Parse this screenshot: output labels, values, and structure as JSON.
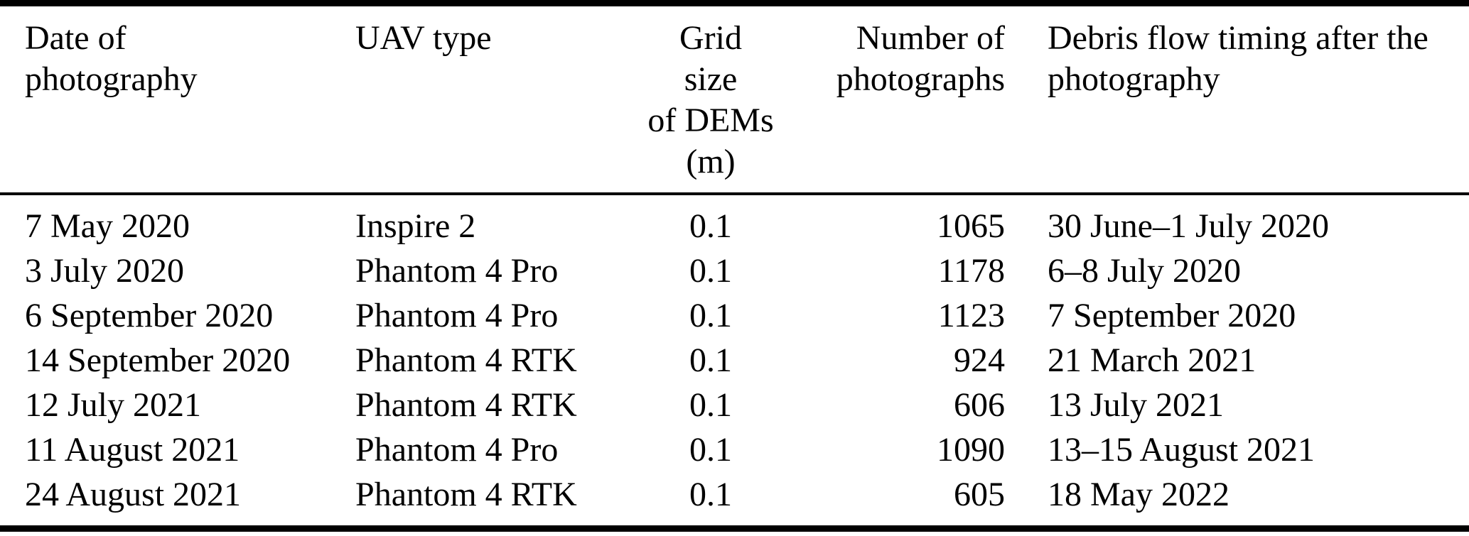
{
  "table": {
    "columns": {
      "date": {
        "label": "Date of\nphotography"
      },
      "uav": {
        "label": "UAV type"
      },
      "grid": {
        "label": "Grid\nsize\nof DEMs\n(m)"
      },
      "num": {
        "label": "Number of\nphotographs"
      },
      "timing": {
        "label": "Debris flow timing after the\nphotography"
      }
    },
    "rows": [
      {
        "date": "7 May 2020",
        "uav": "Inspire 2",
        "grid": "0.1",
        "num": "1065",
        "timing": "30 June–1 July 2020"
      },
      {
        "date": "3 July 2020",
        "uav": "Phantom 4 Pro",
        "grid": "0.1",
        "num": "1178",
        "timing": "6–8 July 2020"
      },
      {
        "date": "6 September 2020",
        "uav": "Phantom 4 Pro",
        "grid": "0.1",
        "num": "1123",
        "timing": "7 September 2020"
      },
      {
        "date": "14 September 2020",
        "uav": "Phantom 4 RTK",
        "grid": "0.1",
        "num": "924",
        "timing": "21 March 2021"
      },
      {
        "date": "12 July 2021",
        "uav": "Phantom 4 RTK",
        "grid": "0.1",
        "num": "606",
        "timing": "13 July 2021"
      },
      {
        "date": "11 August 2021",
        "uav": "Phantom 4 Pro",
        "grid": "0.1",
        "num": "1090",
        "timing": "13–15 August 2021"
      },
      {
        "date": "24 August 2021",
        "uav": "Phantom 4 RTK",
        "grid": "0.1",
        "num": "605",
        "timing": "18 May 2022"
      }
    ],
    "colors": {
      "text": "#000000",
      "background": "#ffffff",
      "rule": "#000000"
    }
  }
}
